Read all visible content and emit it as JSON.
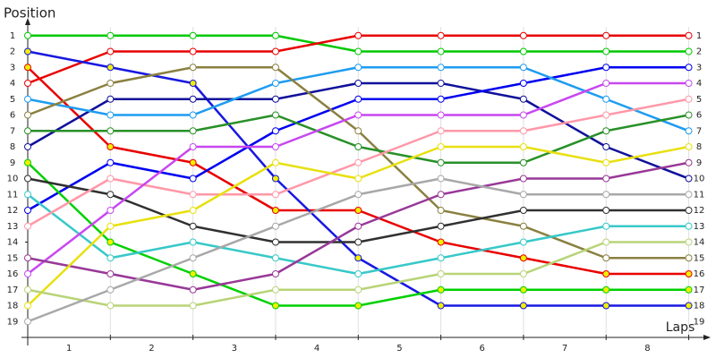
{
  "chart_data": {
    "type": "bump",
    "y_label": "Position",
    "x_label": "Laps",
    "x": [
      0,
      1,
      2,
      3,
      4,
      5,
      6,
      7,
      8
    ],
    "xlim": [
      0,
      8.2
    ],
    "xticks": [
      {
        "value": 0.5,
        "label": "1"
      },
      {
        "value": 1.5,
        "label": "2"
      },
      {
        "value": 2.5,
        "label": "3"
      },
      {
        "value": 3.5,
        "label": "4"
      },
      {
        "value": 4.5,
        "label": "5"
      },
      {
        "value": 5.5,
        "label": "6"
      },
      {
        "value": 6.5,
        "label": "7"
      },
      {
        "value": 7.5,
        "label": "8"
      }
    ],
    "ylim": [
      20,
      0
    ],
    "yticks": [
      1,
      2,
      3,
      4,
      5,
      6,
      7,
      8,
      9,
      10,
      11,
      12,
      13,
      14,
      15,
      16,
      17,
      18,
      19
    ],
    "grid": true,
    "series": [
      {
        "color": "#00c800",
        "marker_fill": "#ffffff",
        "values": [
          1,
          1,
          1,
          1,
          2,
          2,
          2,
          2,
          2
        ]
      },
      {
        "color": "#e80000",
        "marker_fill": "#ffffff",
        "values": [
          4,
          2,
          2,
          2,
          1,
          1,
          1,
          1,
          1
        ]
      },
      {
        "color": "#e80000",
        "marker_fill": "#f0f000",
        "values": [
          3,
          8,
          9,
          12,
          12,
          14,
          15,
          16,
          16
        ]
      },
      {
        "color": "#1818e0",
        "marker_fill": "#f0f000",
        "values": [
          2,
          3,
          4,
          10,
          15,
          18,
          18,
          18,
          18
        ]
      },
      {
        "color": "#10109a",
        "marker_fill": "#ffffff",
        "values": [
          8,
          5,
          5,
          5,
          4,
          4,
          5,
          8,
          10
        ]
      },
      {
        "color": "#0000f0",
        "marker_fill": "#ffffff",
        "values": [
          12,
          9,
          10,
          7,
          5,
          5,
          4,
          3,
          3
        ]
      },
      {
        "color": "#1e9cf0",
        "marker_fill": "#ffffff",
        "values": [
          5,
          6,
          6,
          4,
          3,
          3,
          3,
          5,
          7
        ]
      },
      {
        "color": "#8a8040",
        "marker_fill": "#ffffff",
        "values": [
          6,
          4,
          3,
          3,
          7,
          12,
          13,
          15,
          15
        ]
      },
      {
        "color": "#289028",
        "marker_fill": "#ffffff",
        "values": [
          7,
          7,
          7,
          6,
          8,
          9,
          9,
          7,
          6
        ]
      },
      {
        "color": "#00d000",
        "marker_fill": "#f0f000",
        "values": [
          9,
          14,
          16,
          18,
          18,
          17,
          17,
          17,
          17
        ]
      },
      {
        "color": "#303030",
        "marker_fill": "#ffffff",
        "values": [
          10,
          11,
          13,
          14,
          14,
          13,
          12,
          12,
          12
        ]
      },
      {
        "color": "#38c8c8",
        "marker_fill": "#ffffff",
        "values": [
          11,
          15,
          14,
          15,
          16,
          15,
          14,
          13,
          13
        ]
      },
      {
        "color": "#ff98a8",
        "marker_fill": "#ffffff",
        "values": [
          13,
          10,
          11,
          11,
          9,
          7,
          7,
          6,
          5
        ]
      },
      {
        "color": "#c848f0",
        "marker_fill": "#ffffff",
        "values": [
          16,
          12,
          8,
          8,
          6,
          6,
          6,
          4,
          4
        ]
      },
      {
        "color": "#983898",
        "marker_fill": "#ffffff",
        "values": [
          15,
          16,
          17,
          16,
          13,
          11,
          10,
          10,
          9
        ]
      },
      {
        "color": "#e8e010",
        "marker_fill": "#ffffff",
        "values": [
          18,
          13,
          12,
          9,
          10,
          8,
          8,
          9,
          8
        ]
      },
      {
        "color": "#b8d478",
        "marker_fill": "#ffffff",
        "values": [
          17,
          18,
          18,
          17,
          17,
          16,
          16,
          14,
          14
        ]
      },
      {
        "color": "#a8a8a8",
        "marker_fill": "#ffffff",
        "values": [
          19,
          17,
          15,
          13,
          11,
          10,
          11,
          11,
          11
        ]
      }
    ]
  }
}
